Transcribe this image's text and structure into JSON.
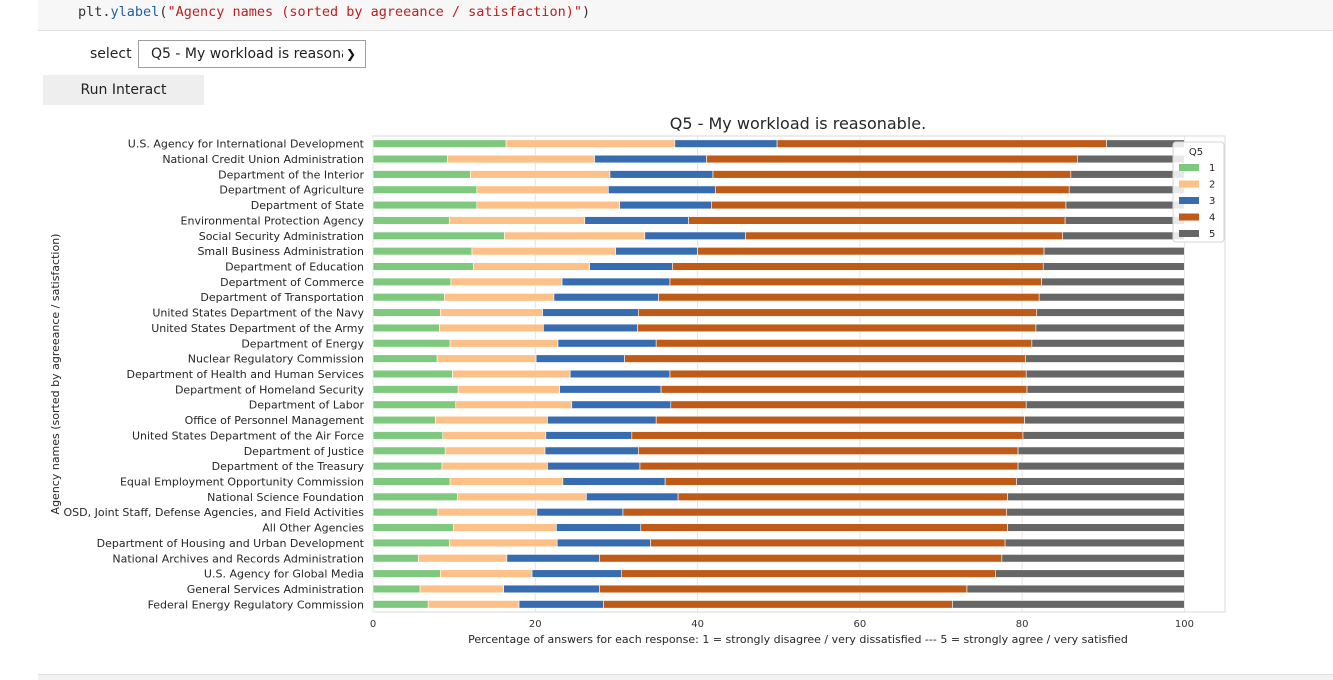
{
  "code": {
    "line_prefix": "plt.",
    "line_fn": "ylabel",
    "line_open": "(",
    "line_str": "\"Agency names (sorted by agreeance / satisfaction)\"",
    "line_close": ")"
  },
  "widget": {
    "label": "select",
    "selected": "Q5  - My workload is reasonable."
  },
  "run_button": {
    "label": "Run Interact"
  },
  "chart_data": {
    "type": "bar",
    "orientation": "horizontal",
    "stacked": true,
    "title": "Q5  - My workload is reasonable.",
    "xlabel": "Percentage of answers for each response: 1 = strongly disagree / very dissatisfied --- 5 = strongly agree / very satisfied",
    "ylabel": "Agency names (sorted by agreeance / satisfaction)",
    "xlim": [
      0,
      105
    ],
    "xticks": [
      0,
      20,
      40,
      60,
      80,
      100
    ],
    "grid": true,
    "legend": {
      "title": "Q5",
      "position": "top-right",
      "entries": [
        "1",
        "2",
        "3",
        "4",
        "5"
      ]
    },
    "colors": [
      "#7fc97f",
      "#fdc086",
      "#386cb0",
      "#bf5b17",
      "#666666"
    ],
    "categories": [
      "U.S. Agency for International Development",
      "National Credit Union Administration",
      "Department of the Interior",
      "Department of Agriculture",
      "Department of State",
      "Environmental Protection Agency",
      "Social Security Administration",
      "Small Business Administration",
      "Department of Education",
      "Department of Commerce",
      "Department of Transportation",
      "United States Department of the Navy",
      "United States Department of the Army",
      "Department of Energy",
      "Nuclear Regulatory Commission",
      "Department of Health and Human Services",
      "Department of Homeland Security",
      "Department of Labor",
      "Office of Personnel Management",
      "United States Department of the Air Force",
      "Department of Justice",
      "Department of the Treasury",
      "Equal Employment Opportunity Commission",
      "National Science Foundation",
      "OSD, Joint Staff, Defense Agencies, and Field Activities",
      "All Other Agencies",
      "Department of Housing and Urban Development",
      "National Archives and Records Administration",
      "U.S. Agency for Global Media",
      "General Services Administration",
      "Federal Energy Regulatory Commission"
    ],
    "series": [
      {
        "name": "1",
        "values": [
          16.4,
          9.2,
          12.0,
          12.8,
          12.8,
          9.4,
          16.2,
          12.2,
          12.4,
          9.6,
          8.8,
          8.3,
          8.2,
          9.5,
          7.9,
          9.8,
          10.5,
          10.2,
          7.7,
          8.6,
          8.9,
          8.5,
          9.5,
          10.4,
          8.0,
          9.9,
          9.4,
          5.6,
          8.3,
          5.8,
          6.8
        ]
      },
      {
        "name": "2",
        "values": [
          20.8,
          18.1,
          17.2,
          16.2,
          17.6,
          16.7,
          17.3,
          17.7,
          14.3,
          13.7,
          13.5,
          12.6,
          12.8,
          13.3,
          12.2,
          14.5,
          12.5,
          14.3,
          13.8,
          12.7,
          12.3,
          13.0,
          13.9,
          15.9,
          12.2,
          12.7,
          13.3,
          10.9,
          11.3,
          10.3,
          11.2
        ]
      },
      {
        "name": "3",
        "values": [
          12.6,
          13.8,
          12.7,
          13.2,
          11.3,
          12.8,
          12.4,
          10.1,
          10.2,
          13.3,
          12.9,
          11.8,
          11.6,
          12.1,
          10.9,
          12.3,
          12.5,
          12.2,
          13.4,
          10.6,
          11.5,
          11.4,
          12.6,
          11.3,
          10.6,
          10.4,
          11.5,
          11.4,
          11.0,
          11.8,
          10.4
        ]
      },
      {
        "name": "4",
        "values": [
          40.6,
          45.7,
          44.1,
          43.6,
          43.7,
          46.4,
          39.1,
          42.7,
          45.7,
          45.8,
          46.9,
          49.1,
          49.1,
          46.3,
          49.4,
          43.9,
          45.1,
          43.8,
          45.4,
          48.2,
          46.8,
          46.6,
          43.3,
          40.6,
          47.3,
          45.2,
          43.7,
          49.6,
          46.1,
          45.3,
          43.0
        ]
      },
      {
        "name": "5",
        "values": [
          9.6,
          13.2,
          14.0,
          14.2,
          14.6,
          14.7,
          15.0,
          17.3,
          17.4,
          17.6,
          17.9,
          18.2,
          18.3,
          18.8,
          19.6,
          19.5,
          19.4,
          19.5,
          19.7,
          19.9,
          20.5,
          20.5,
          20.7,
          21.8,
          21.9,
          21.8,
          22.1,
          22.5,
          23.3,
          26.8,
          28.6
        ]
      }
    ]
  }
}
